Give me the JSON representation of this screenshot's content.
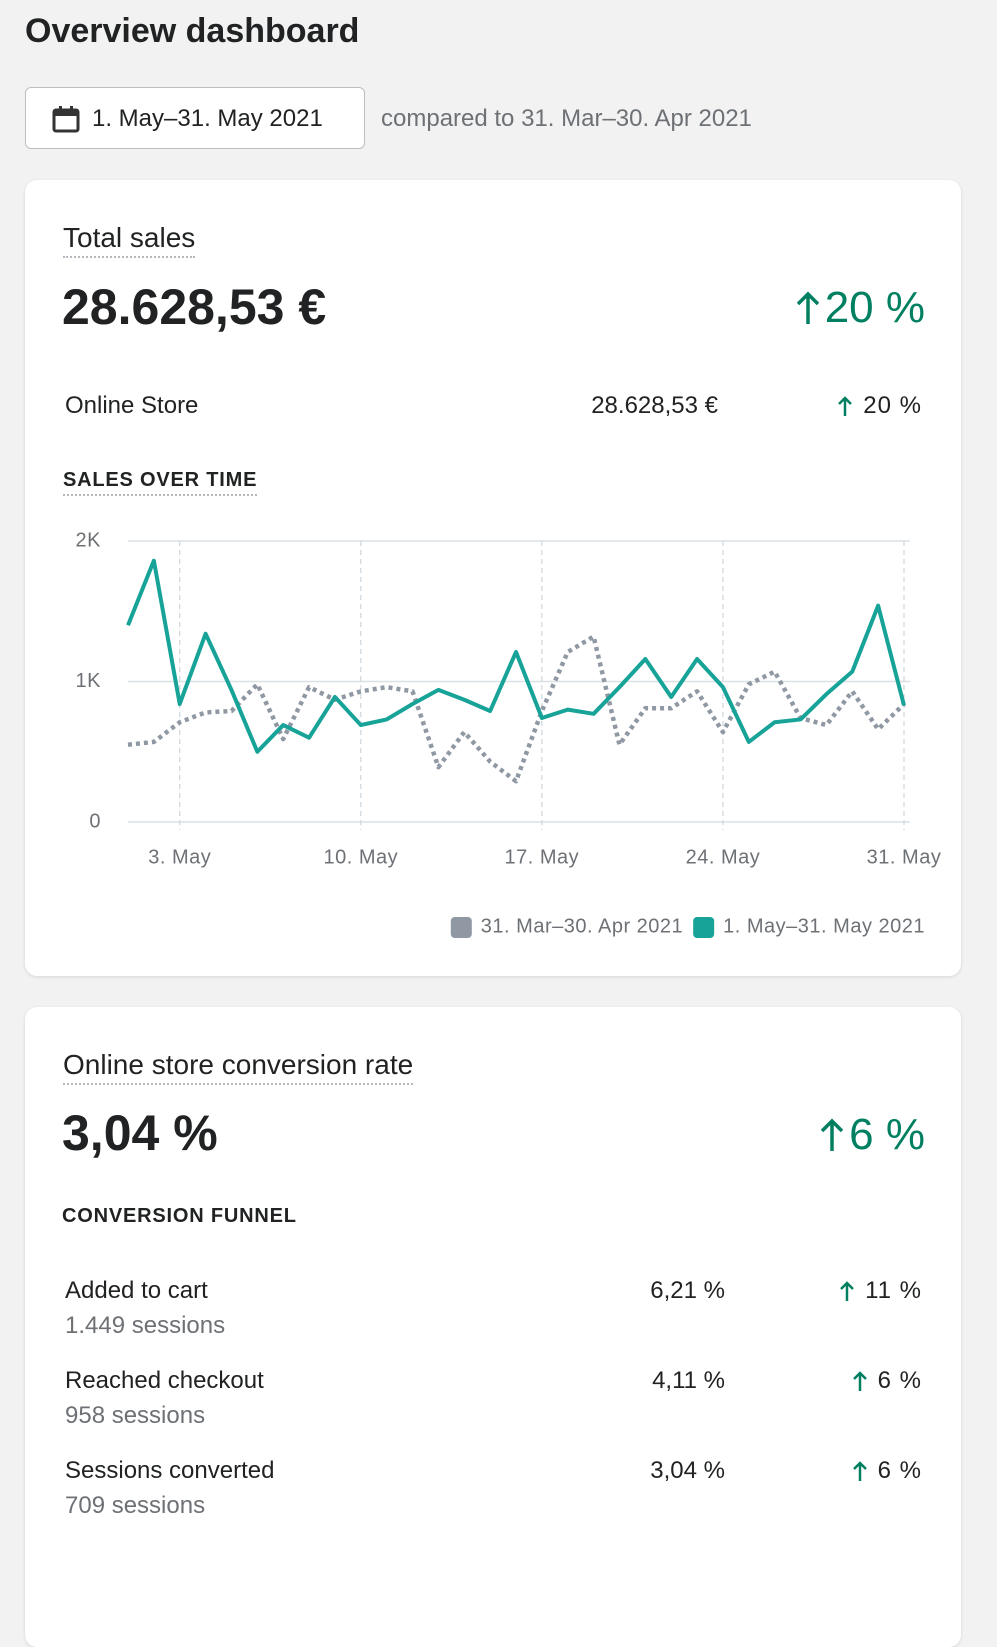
{
  "header": {
    "title": "Overview dashboard",
    "date_range": "1. May–31. May 2021",
    "comparison": "compared to 31. Mar–30. Apr 2021"
  },
  "total_sales": {
    "title": "Total sales",
    "value": "28.628,53 €",
    "change": "20 %",
    "channels": [
      {
        "name": "Online Store",
        "value": "28.628,53 €",
        "change": "20 %"
      }
    ]
  },
  "chart_data": {
    "type": "line",
    "title": "SALES OVER TIME",
    "x": [
      1,
      2,
      3,
      4,
      5,
      6,
      7,
      8,
      9,
      10,
      11,
      12,
      13,
      14,
      15,
      16,
      17,
      18,
      19,
      20,
      21,
      22,
      23,
      24,
      25,
      26,
      27,
      28,
      29,
      30,
      31
    ],
    "xlim": [
      1,
      31
    ],
    "xticks": [
      {
        "value": 3,
        "label": "3. May"
      },
      {
        "value": 10,
        "label": "10. May"
      },
      {
        "value": 17,
        "label": "17. May"
      },
      {
        "value": 24,
        "label": "24. May"
      },
      {
        "value": 31,
        "label": "31. May"
      }
    ],
    "ylim": [
      0,
      2000
    ],
    "yticks": [
      0,
      {
        "value": 1000,
        "label": "1K"
      },
      {
        "value": 2000,
        "label": "2K"
      }
    ],
    "grid": true,
    "series": [
      {
        "name": "31. Mar–30. Apr 2021",
        "color": "#8f98a3",
        "dash": "dotted",
        "values": [
          550,
          570,
          710,
          780,
          790,
          980,
          590,
          960,
          870,
          930,
          960,
          930,
          390,
          640,
          430,
          290,
          790,
          1210,
          1320,
          550,
          810,
          810,
          930,
          640,
          980,
          1070,
          740,
          690,
          930,
          660,
          840
        ]
      },
      {
        "name": "1. May–31. May 2021",
        "color": "#17a398",
        "values": [
          1400,
          1860,
          840,
          1340,
          940,
          500,
          690,
          600,
          890,
          690,
          730,
          840,
          940,
          870,
          790,
          1210,
          740,
          800,
          770,
          960,
          1160,
          890,
          1160,
          960,
          570,
          710,
          730,
          910,
          1070,
          1540,
          830
        ]
      }
    ]
  },
  "conversion": {
    "title": "Online store conversion rate",
    "value": "3,04 %",
    "change": "6 %",
    "funnel_title": "CONVERSION FUNNEL",
    "funnel": [
      {
        "label": "Added to cart",
        "sessions": "1.449 sessions",
        "rate": "6,21 %",
        "change": "11 %"
      },
      {
        "label": "Reached checkout",
        "sessions": "958 sessions",
        "rate": "4,11 %",
        "change": "6 %"
      },
      {
        "label": "Sessions converted",
        "sessions": "709 sessions",
        "rate": "3,04 %",
        "change": "6 %"
      }
    ]
  }
}
